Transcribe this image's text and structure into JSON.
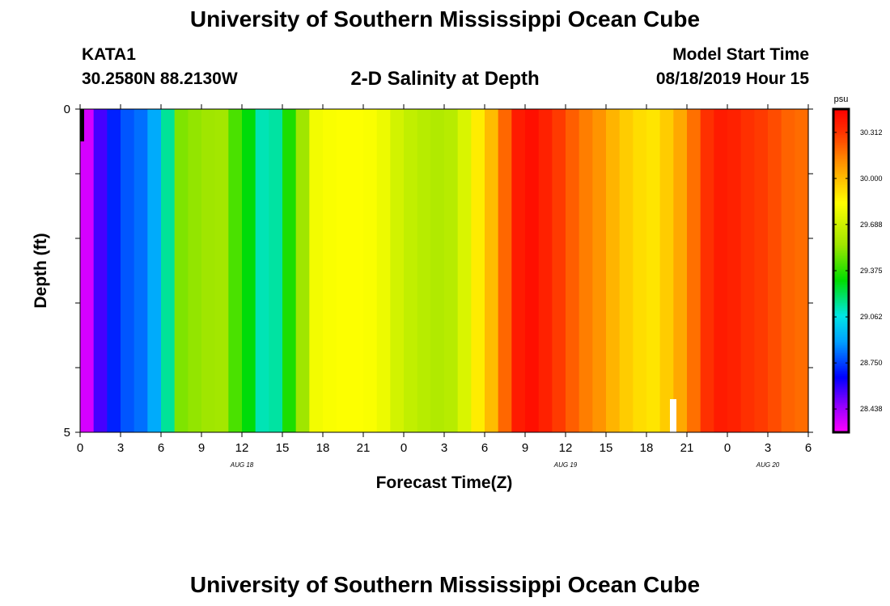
{
  "header": {
    "title": "University of Southern Mississippi Ocean Cube",
    "station": "KATA1",
    "coordinates": "30.2580N 88.2130W",
    "subtitle": "2-D Salinity at Depth",
    "start_label": "Model Start Time",
    "start_time": "08/18/2019 Hour 15"
  },
  "footer": {
    "title": "University of Southern Mississippi Ocean Cube"
  },
  "chart_data": {
    "type": "heatmap",
    "xlabel": "Forecast Time(Z)",
    "ylabel": "Depth (ft)",
    "x_tick_labels": [
      "0",
      "3",
      "6",
      "9",
      "12",
      "15",
      "18",
      "21",
      "0",
      "3",
      "6",
      "9",
      "12",
      "15",
      "18",
      "21",
      "0",
      "3",
      "6"
    ],
    "date_labels": [
      {
        "label": "AUG 18",
        "hour": 12
      },
      {
        "label": "AUG 19",
        "hour": 36
      },
      {
        "label": "AUG 20",
        "hour": 51
      }
    ],
    "xlim_hours": [
      0,
      54
    ],
    "y_tick_labels": [
      "0",
      "5"
    ],
    "ylim_ft": [
      0,
      5
    ],
    "colorbar": {
      "unit": "psu",
      "min": 28.28,
      "max": 30.47,
      "tick_labels": [
        "30.312",
        "30.000",
        "29.688",
        "29.375",
        "29.062",
        "28.750",
        "28.438"
      ],
      "tick_values": [
        30.312,
        30.0,
        29.688,
        29.375,
        29.062,
        28.75,
        28.438
      ]
    },
    "salinity_psu_by_hour": [
      28.35,
      28.56,
      28.7,
      28.78,
      28.82,
      28.92,
      29.15,
      29.5,
      29.53,
      29.55,
      29.56,
      29.42,
      29.3,
      29.12,
      29.14,
      29.35,
      29.55,
      29.8,
      29.82,
      29.83,
      29.83,
      29.82,
      29.78,
      29.7,
      29.65,
      29.62,
      29.6,
      29.62,
      29.72,
      29.88,
      30.0,
      30.2,
      30.38,
      30.42,
      30.36,
      30.3,
      30.22,
      30.15,
      30.1,
      30.02,
      29.96,
      29.92,
      29.9,
      29.96,
      30.05,
      30.18,
      30.32,
      30.38,
      30.36,
      30.32,
      30.3,
      30.26,
      30.21,
      30.19,
      30.17
    ]
  }
}
